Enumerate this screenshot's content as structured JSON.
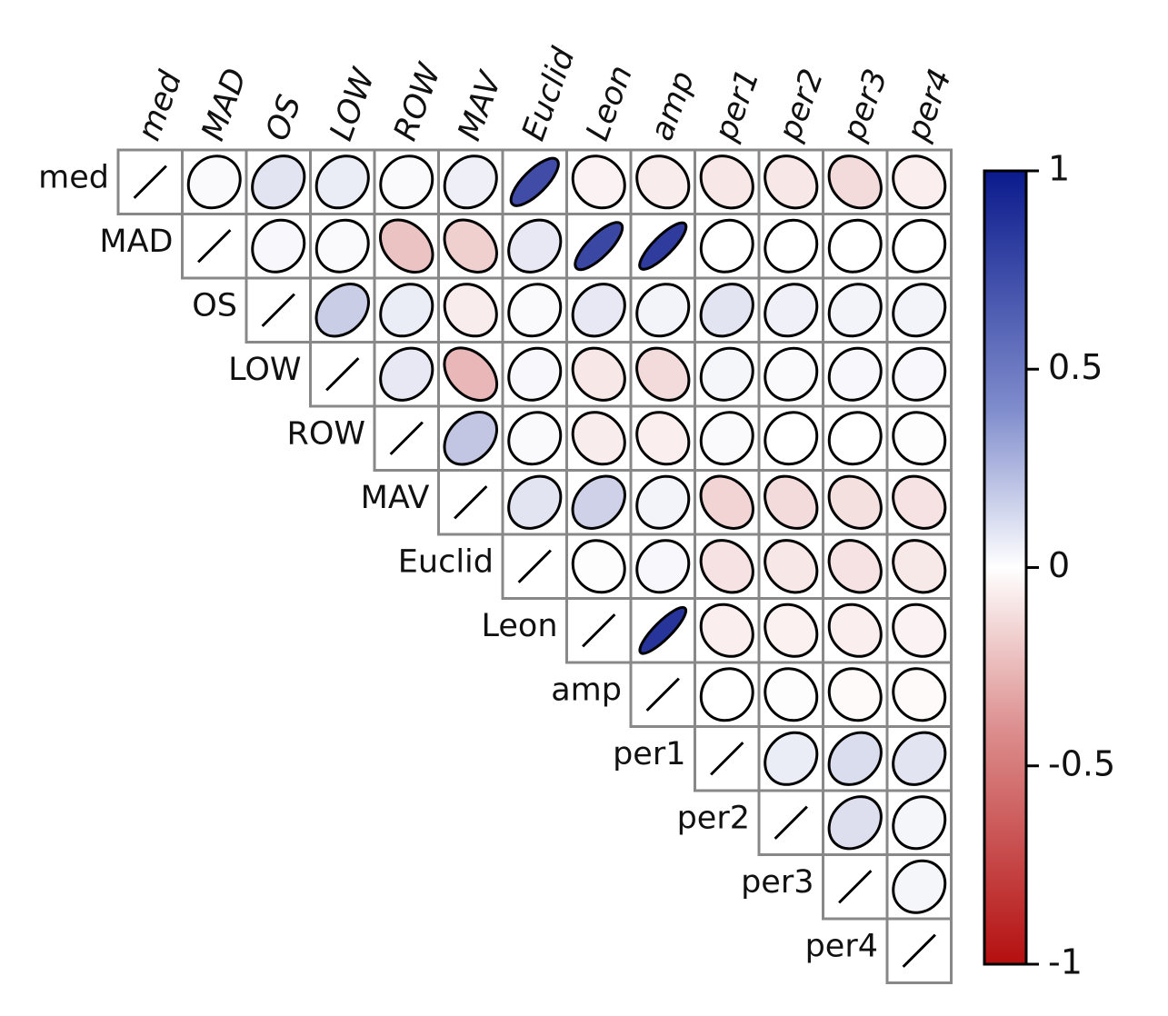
{
  "chart_data": {
    "type": "heatmap",
    "subtype": "correlation-ellipse-upper-triangle",
    "variables": [
      "med",
      "MAD",
      "OS",
      "LOW",
      "ROW",
      "MAV",
      "Euclid",
      "Leon",
      "amp",
      "per1",
      "per2",
      "per3",
      "per4"
    ],
    "matrix": [
      [
        1,
        0.02,
        0.12,
        0.08,
        0.02,
        0.07,
        0.78,
        -0.05,
        -0.08,
        -0.1,
        -0.1,
        -0.15,
        -0.07
      ],
      [
        null,
        1,
        0.03,
        0.02,
        -0.25,
        -0.2,
        0.1,
        0.8,
        0.85,
        0.0,
        0.0,
        0.0,
        0.0
      ],
      [
        null,
        null,
        1,
        0.22,
        0.08,
        -0.08,
        0.02,
        0.1,
        0.05,
        0.12,
        0.06,
        0.05,
        0.05
      ],
      [
        null,
        null,
        null,
        1,
        0.1,
        -0.3,
        0.03,
        -0.1,
        -0.15,
        0.04,
        0.02,
        0.03,
        0.03
      ],
      [
        null,
        null,
        null,
        null,
        1,
        0.25,
        0.02,
        -0.08,
        -0.07,
        0.02,
        0.0,
        0.0,
        -0.01
      ],
      [
        null,
        null,
        null,
        null,
        null,
        1,
        0.12,
        0.2,
        0.05,
        -0.18,
        -0.15,
        -0.13,
        -0.12
      ],
      [
        null,
        null,
        null,
        null,
        null,
        null,
        1,
        -0.01,
        0.03,
        -0.12,
        -0.1,
        -0.12,
        -0.09
      ],
      [
        null,
        null,
        null,
        null,
        null,
        null,
        null,
        1,
        0.88,
        -0.07,
        -0.06,
        -0.07,
        -0.05
      ],
      [
        null,
        null,
        null,
        null,
        null,
        null,
        null,
        null,
        1,
        0.0,
        -0.01,
        -0.02,
        -0.02
      ],
      [
        null,
        null,
        null,
        null,
        null,
        null,
        null,
        null,
        null,
        1,
        0.08,
        0.15,
        0.12
      ],
      [
        null,
        null,
        null,
        null,
        null,
        null,
        null,
        null,
        null,
        null,
        1,
        0.14,
        0.04
      ],
      [
        null,
        null,
        null,
        null,
        null,
        null,
        null,
        null,
        null,
        null,
        null,
        1,
        0.04
      ],
      [
        null,
        null,
        null,
        null,
        null,
        null,
        null,
        null,
        null,
        null,
        null,
        null,
        1
      ]
    ],
    "colorbar": {
      "ticks": [
        1,
        0.5,
        0,
        -0.5,
        -1
      ],
      "tick_labels": [
        "1",
        "0.5",
        "0",
        "-0.5",
        "-1"
      ],
      "range": [
        -1,
        1
      ],
      "colors": {
        "negative": "#b40f0f",
        "zero": "#ffffff",
        "positive": "#0a1a8c"
      }
    },
    "grid_color": "#888888"
  }
}
